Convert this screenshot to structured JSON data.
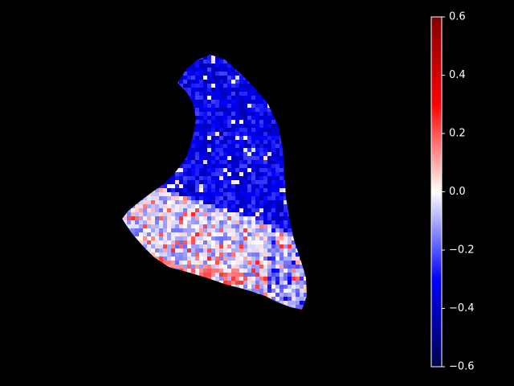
{
  "chart_data": {
    "type": "heatmap",
    "title": "",
    "xlabel": "",
    "ylabel": "",
    "background": "#000000",
    "axes_visible": false,
    "grid": false,
    "colormap": "seismic",
    "colormap_stops": [
      "#00004c",
      "#0000ff",
      "#ffffff",
      "#ff0000",
      "#800000"
    ],
    "value_range": [
      -0.6,
      0.6
    ],
    "colorbar": {
      "placement": "right",
      "ticks": [
        0.6,
        0.4,
        0.2,
        0.0,
        -0.2,
        -0.4,
        -0.6
      ],
      "tick_labels": [
        "0.6",
        "0.4",
        "0.2",
        "0.0",
        "−0.2",
        "−0.4",
        "−0.6"
      ]
    },
    "field_description": "Irregular masked region; upper portion predominantly negative values (about -0.3 to -0.4), lower portion mixed values near 0 with scattered positive patches (about 0.1 to 0.25)."
  }
}
